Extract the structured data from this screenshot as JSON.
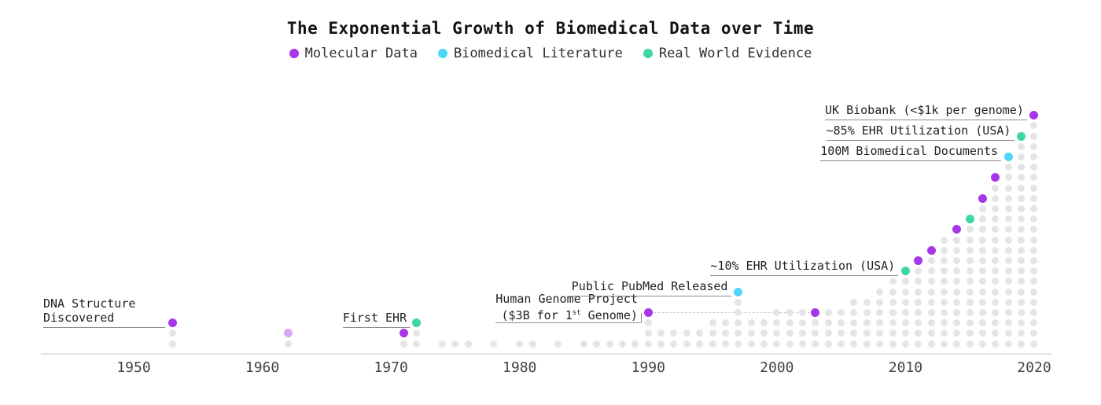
{
  "chart_data": {
    "type": "dot-column-timeline",
    "title": "The Exponential Growth of Biomedical Data over Time",
    "legend": [
      {
        "label": "Molecular Data",
        "series": "molecular"
      },
      {
        "label": "Biomedical Literature",
        "series": "literature"
      },
      {
        "label": "Real World Evidence",
        "series": "rwe"
      }
    ],
    "palette": {
      "molecular": "#a636e8",
      "literature": "#4fd5f7",
      "rwe": "#3ed6a2",
      "molecular_faded": "#d9a6f3",
      "default": "#e5e5e7",
      "axis": "#e3e3e3",
      "tick_text": "#454545",
      "annotation_text": "#222222",
      "annotation_line": "#8a8a8a",
      "dashed_line": "#cccccc"
    },
    "x_axis": {
      "ticks": [
        1950,
        1960,
        1970,
        1980,
        1990,
        2000,
        2010,
        2020
      ]
    },
    "columns": [
      {
        "year": 1953,
        "count": 3,
        "top": "molecular"
      },
      {
        "year": 1962,
        "count": 2,
        "top": "molecular_faded"
      },
      {
        "year": 1971,
        "count": 2,
        "top": "molecular"
      },
      {
        "year": 1972,
        "count": 3,
        "top": "rwe"
      },
      {
        "year": 1974,
        "count": 1
      },
      {
        "year": 1975,
        "count": 1
      },
      {
        "year": 1976,
        "count": 1
      },
      {
        "year": 1978,
        "count": 1
      },
      {
        "year": 1980,
        "count": 1
      },
      {
        "year": 1981,
        "count": 1
      },
      {
        "year": 1983,
        "count": 1
      },
      {
        "year": 1985,
        "count": 1
      },
      {
        "year": 1986,
        "count": 1
      },
      {
        "year": 1987,
        "count": 1
      },
      {
        "year": 1988,
        "count": 1
      },
      {
        "year": 1989,
        "count": 1
      },
      {
        "year": 1990,
        "count": 4,
        "top": "molecular"
      },
      {
        "year": 1991,
        "count": 2
      },
      {
        "year": 1992,
        "count": 2
      },
      {
        "year": 1993,
        "count": 2
      },
      {
        "year": 1994,
        "count": 2
      },
      {
        "year": 1995,
        "count": 3
      },
      {
        "year": 1996,
        "count": 3
      },
      {
        "year": 1997,
        "count": 6,
        "top": "literature"
      },
      {
        "year": 1998,
        "count": 3
      },
      {
        "year": 1999,
        "count": 3
      },
      {
        "year": 2000,
        "count": 4
      },
      {
        "year": 2001,
        "count": 4
      },
      {
        "year": 2002,
        "count": 4
      },
      {
        "year": 2003,
        "count": 4,
        "top": "molecular"
      },
      {
        "year": 2004,
        "count": 4
      },
      {
        "year": 2005,
        "count": 4
      },
      {
        "year": 2006,
        "count": 5
      },
      {
        "year": 2007,
        "count": 5
      },
      {
        "year": 2008,
        "count": 6
      },
      {
        "year": 2009,
        "count": 7
      },
      {
        "year": 2010,
        "count": 8,
        "top": "rwe"
      },
      {
        "year": 2011,
        "count": 9,
        "top": "molecular"
      },
      {
        "year": 2012,
        "count": 10,
        "top": "molecular"
      },
      {
        "year": 2013,
        "count": 11
      },
      {
        "year": 2014,
        "count": 12,
        "top": "molecular"
      },
      {
        "year": 2015,
        "count": 13,
        "top": "rwe"
      },
      {
        "year": 2016,
        "count": 15,
        "top": "molecular"
      },
      {
        "year": 2017,
        "count": 17,
        "top": "molecular"
      },
      {
        "year": 2018,
        "count": 19,
        "top": "literature"
      },
      {
        "year": 2019,
        "count": 21,
        "top": "rwe"
      },
      {
        "year": 2020,
        "count": 23,
        "top": "molecular"
      }
    ],
    "annotations": [
      {
        "year": 1953,
        "lines": [
          "DNA Structure",
          "Discovered"
        ],
        "series": "molecular",
        "align": "left",
        "label_x": 55
      },
      {
        "year": 1972,
        "lines": [
          "First EHR"
        ],
        "series": "rwe"
      },
      {
        "year": 1990,
        "lines": [
          "Human Genome Project",
          "($3B for 1^{st} Genome)"
        ],
        "series": "molecular",
        "elbow": true,
        "dash_to_year": 2003
      },
      {
        "year": 1997,
        "lines": [
          "Public PubMed Released"
        ],
        "series": "literature"
      },
      {
        "year": 2010,
        "lines": [
          "~10% EHR Utilization (USA)"
        ],
        "series": "rwe"
      },
      {
        "year": 2018,
        "lines": [
          "100M Biomedical Documents"
        ],
        "series": "literature"
      },
      {
        "year": 2019,
        "lines": [
          "~85% EHR Utilization (USA)"
        ],
        "series": "rwe"
      },
      {
        "year": 2020,
        "lines": [
          "UK Biobank (<$1k per genome)"
        ],
        "series": "molecular"
      }
    ]
  }
}
